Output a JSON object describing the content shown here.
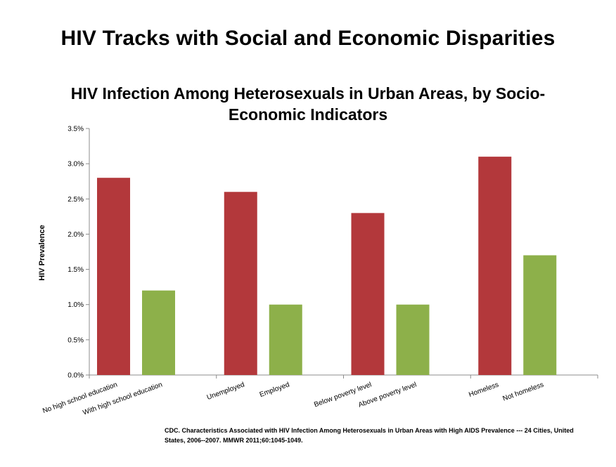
{
  "slide": {
    "title": "HIV Tracks with Social and Economic Disparities"
  },
  "chart_data": {
    "type": "bar",
    "title": "HIV Infection Among Heterosexuals in Urban Areas, by Socio-Economic Indicators",
    "title_line1": "HIV Infection Among Heterosexuals in Urban Areas, by Socio-",
    "title_line2": "Economic Indicators",
    "xlabel": "",
    "ylabel": "HIV Prevalence",
    "ylim": [
      0,
      3.5
    ],
    "yticks": [
      "0.0%",
      "0.5%",
      "1.0%",
      "1.5%",
      "2.0%",
      "2.5%",
      "3.0%",
      "3.5%"
    ],
    "grid": false,
    "legend": "none",
    "categories": [
      "No high school education",
      "With high school education",
      "Unemployed",
      "Employed",
      "Below poverty level",
      "Above poverty level",
      "Homeless",
      "Not homeless"
    ],
    "values": [
      2.8,
      1.2,
      2.6,
      1.0,
      2.3,
      1.0,
      3.1,
      1.7
    ],
    "colors": [
      "#b3383b",
      "#8db04a",
      "#b3383b",
      "#8db04a",
      "#b3383b",
      "#8db04a",
      "#b3383b",
      "#8db04a"
    ]
  },
  "source": {
    "line1": "CDC. Characteristics Associated with HIV Infection Among Heterosexuals in Urban Areas with High AIDS Prevalence --- 24 Cities, United",
    "line2": "States, 2006--2007. MMWR 2011;60:1045-1049."
  }
}
